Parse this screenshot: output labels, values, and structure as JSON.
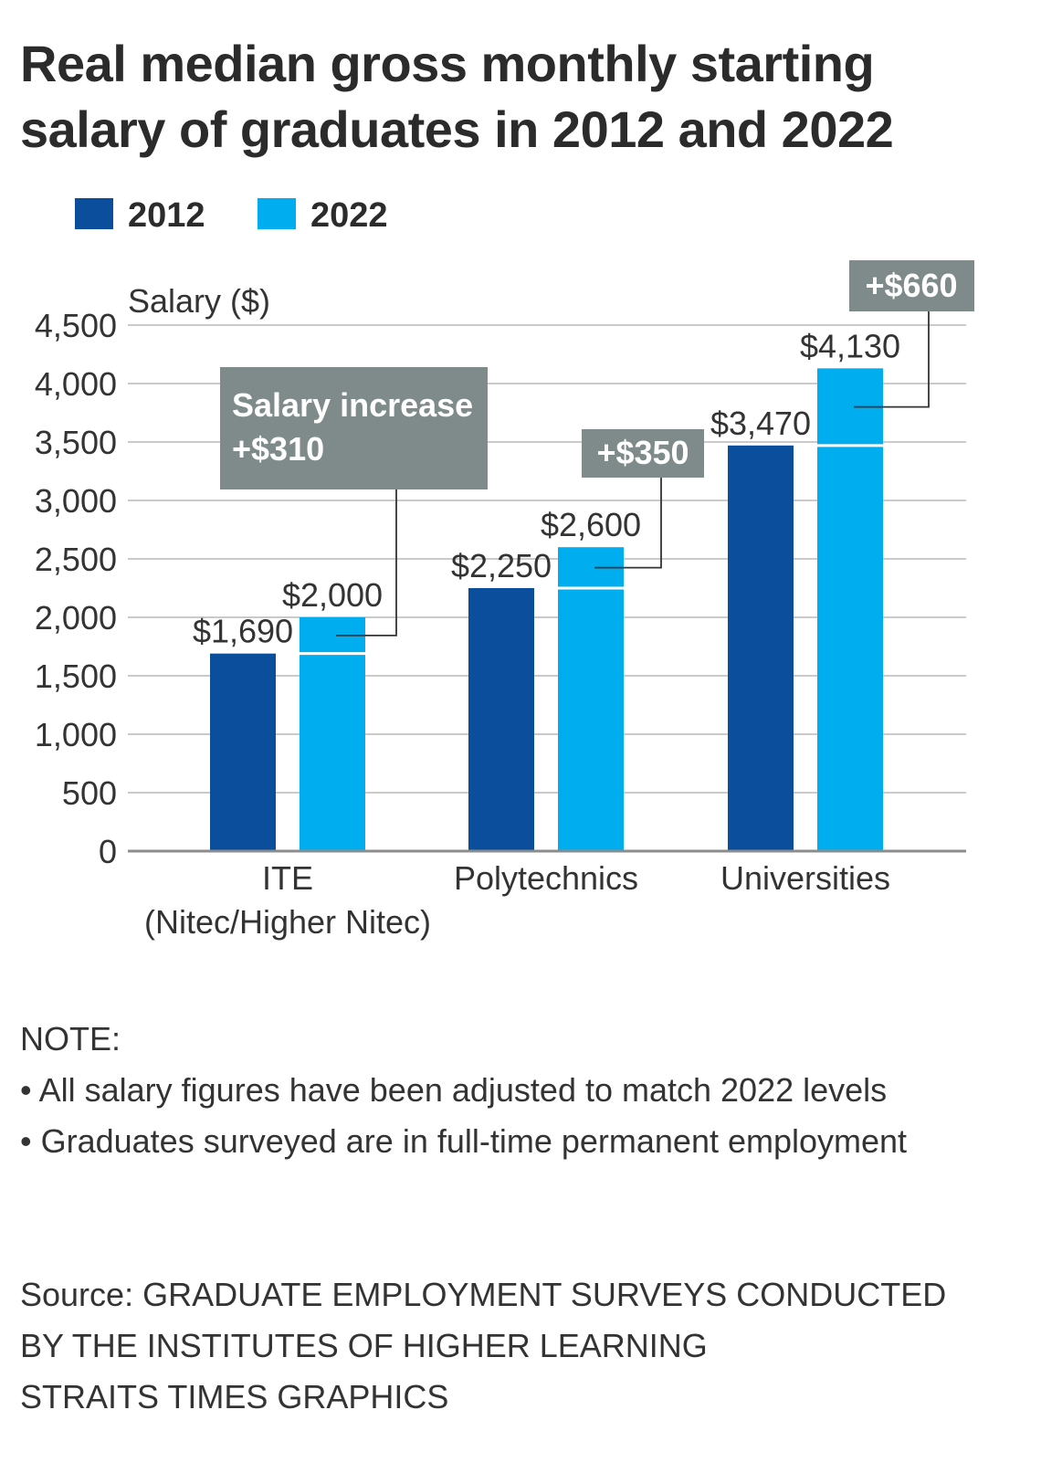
{
  "chart_data": {
    "type": "bar",
    "title": "Real median gross monthly starting salary of graduates in 2012 and 2022",
    "title_lines": [
      "Real median gross monthly starting",
      "salary of graduates in 2012 and 2022"
    ],
    "ylabel": "Salary ($)",
    "xlabel": "",
    "ylim": [
      0,
      4500
    ],
    "yticks": [
      0,
      500,
      1000,
      1500,
      2000,
      2500,
      3000,
      3500,
      4000,
      4500
    ],
    "ytick_labels": [
      "0",
      "500",
      "1,000",
      "1,500",
      "2,000",
      "2,500",
      "3,000",
      "3,500",
      "4,000",
      "4,500"
    ],
    "grid": true,
    "legend_position": "top-left",
    "categories": [
      {
        "id": "ite",
        "lines": [
          "ITE",
          "(Nitec/Higher Nitec)"
        ]
      },
      {
        "id": "poly",
        "lines": [
          "Polytechnics"
        ]
      },
      {
        "id": "uni",
        "lines": [
          "Universities"
        ]
      }
    ],
    "series": [
      {
        "name": "2012",
        "color": "#0b4f9c",
        "values": [
          1690,
          2250,
          3470
        ],
        "value_labels": [
          "$1,690",
          "$2,250",
          "$3,470"
        ]
      },
      {
        "name": "2022",
        "color": "#00aeef",
        "values": [
          2000,
          2600,
          4130
        ],
        "value_labels": [
          "$2,000",
          "$2,600",
          "$4,130"
        ]
      }
    ],
    "annotations": [
      {
        "category": "ite",
        "lines": [
          "Salary increase",
          "+$310"
        ],
        "value": 310
      },
      {
        "category": "poly",
        "lines": [
          "+$350"
        ],
        "value": 350
      },
      {
        "category": "uni",
        "lines": [
          "+$660"
        ],
        "value": 660
      }
    ],
    "annotation_color": "#7f8b8b"
  },
  "notes": {
    "heading": "NOTE:",
    "items": [
      "• All salary figures have been adjusted to match 2022 levels",
      "• Graduates surveyed are in full-time permanent employment"
    ]
  },
  "source": {
    "lines": [
      "Source: GRADUATE EMPLOYMENT SURVEYS CONDUCTED",
      "BY THE INSTITUTES OF HIGHER LEARNING",
      "STRAITS TIMES GRAPHICS"
    ]
  }
}
